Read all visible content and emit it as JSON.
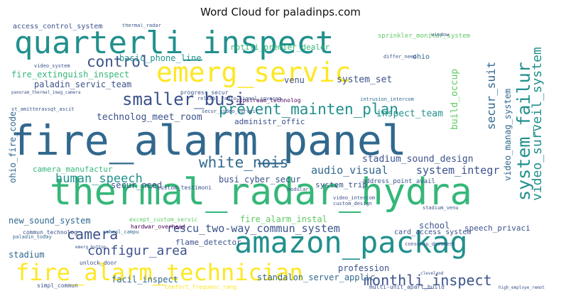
{
  "title": "Word Cloud for paladinps.com",
  "palette": {
    "dark_blue": "#3b528b",
    "teal": "#21908d",
    "green": "#5ec962",
    "light_green": "#35b779",
    "yellow": "#fde725",
    "purple": "#440154"
  },
  "words": [
    "fire_alarm_panel",
    "thermal_radar_hydra",
    "quarterli_inspect",
    "emerg_servic",
    "amazon_packag",
    "fire_alarm_technician",
    "prevent_mainten_plan",
    "system_failur",
    "smaller_busi",
    "monthli_inspect",
    "rescu_two-way_commun_system",
    "white_nois",
    "video_surveil_system",
    "secur_suit",
    "control",
    "human_speech",
    "camera",
    "configur_area",
    "audio_visual",
    "system_integr",
    "stadium_sound_design",
    "basic_phone_line",
    "fire_extinguish_inspect",
    "paladin_servic_team",
    "technolog_meet_room",
    "inspect_team",
    "system_set",
    "build_occup",
    "video_manag_system",
    "camera_manufactur",
    "secur_need",
    "busi_cyber_secur",
    "new_sound_system",
    "fire_alarm_instal",
    "standalon_server_applic",
    "facil_inspect",
    "flame_detector",
    "stadium",
    "profession",
    "school",
    "card_access_system",
    "speech_privaci",
    "access_control_system",
    "notifi_premier_dealer",
    "venu",
    "administr_offic",
    "sprinkler_monitor_system",
    "ohio",
    "ohio_fire_code",
    "system_trip",
    "address_point_avail",
    "custom_testimoni",
    "hardwar_overhead",
    "except_custom_servic",
    "zipstream_technolog",
    "thermal_radar",
    "unlock_door",
    "commun_technolog",
    "comfort_frequenc_rang",
    "multi-unit_apart_build",
    "simpl_commun",
    "paladin_today",
    "consensu_document",
    "video_system",
    "st_amitterassqt_ascit",
    "emerg_button",
    "high_employe_remot",
    "cleveland",
    "window",
    "differ_need",
    "progress_secur",
    "reliabl_radio_signal_coverag",
    "intrusion_intercom",
    "stadium_venu",
    "school_campu",
    "modular",
    "secur_video_surveil",
    "panoram_thermal_imag_camera",
    "video_intercom",
    "custom_design"
  ]
}
